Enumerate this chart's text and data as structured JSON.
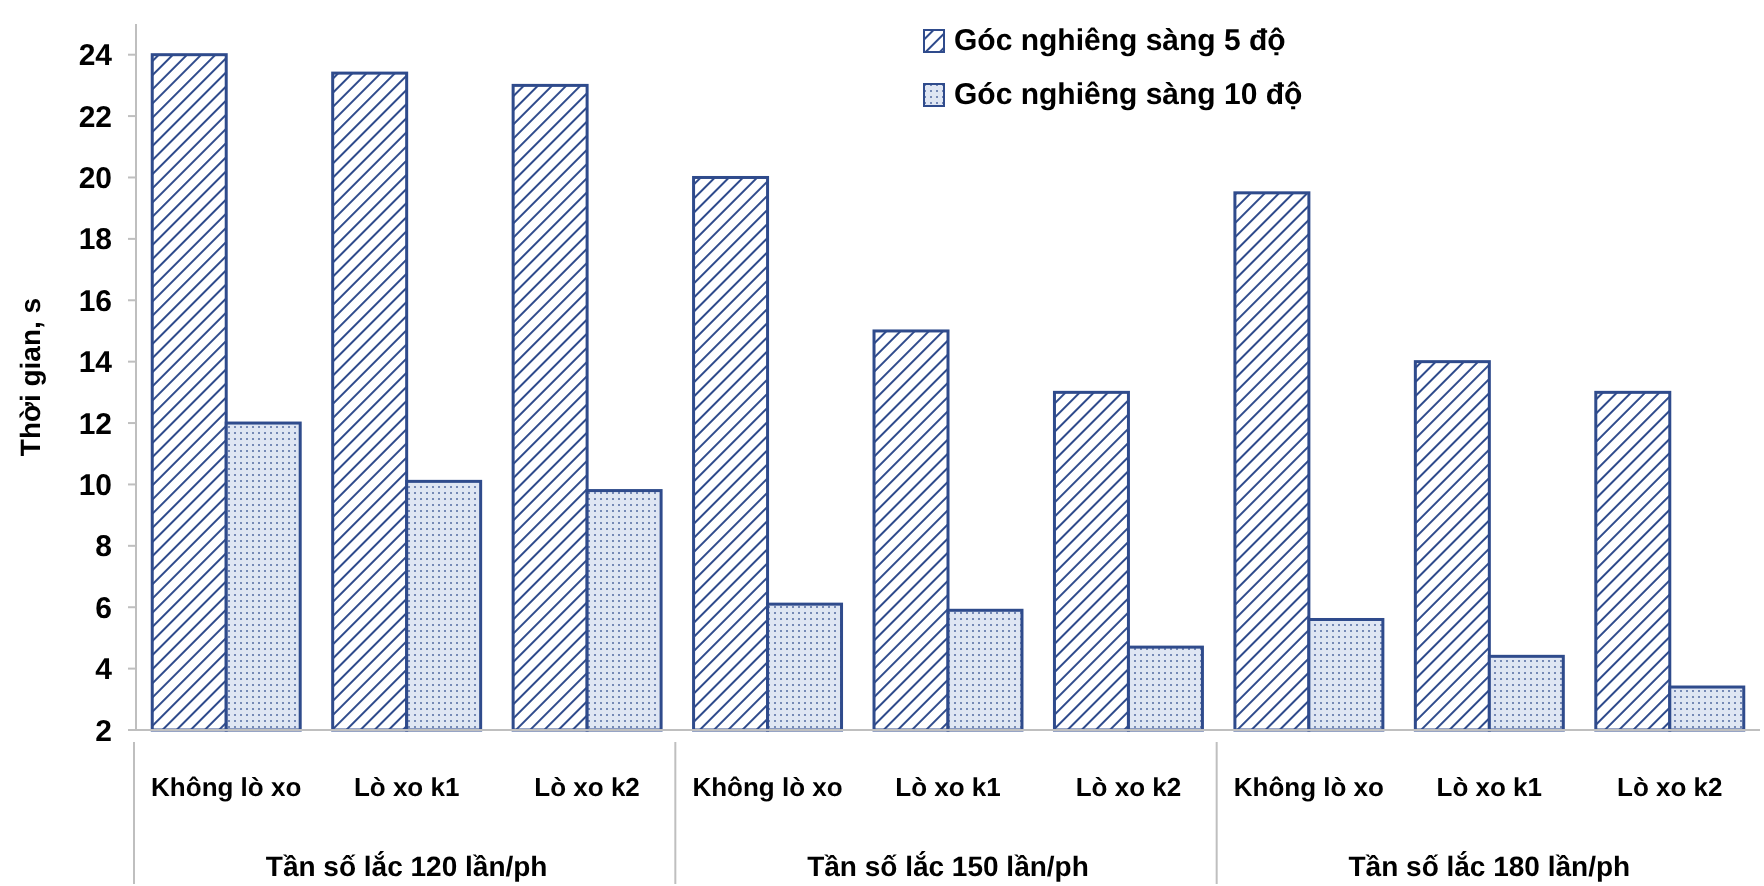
{
  "chart_data": {
    "type": "bar",
    "ylabel": "Thời gian, s",
    "categories": [
      "Không lò xo",
      "Lò xo k1",
      "Lò xo k2",
      "Không lò xo",
      "Lò xo k1",
      "Lò xo k2",
      "Không lò xo",
      "Lò xo k1",
      "Lò xo k2"
    ],
    "series": [
      {
        "name": "Góc nghiêng sàng 5 độ",
        "color": "#2f4b8c",
        "values": [
          24,
          23.4,
          23,
          20,
          15,
          13,
          19.5,
          14,
          13
        ]
      },
      {
        "name": "Góc nghiêng sàng 10 độ",
        "color": "#2f4b8c",
        "values": [
          12,
          10.1,
          9.8,
          6.1,
          5.9,
          4.7,
          5.6,
          4.4,
          3.4
        ]
      }
    ],
    "annotations": [
      "Tần số lắc 120 lần/ph",
      "Tần số lắc 150 lần/ph",
      "Tần số lắc 180 lần/ph"
    ],
    "ylim": [
      2,
      25
    ],
    "yticks": [
      2,
      4,
      6,
      8,
      10,
      12,
      14,
      16,
      18,
      20,
      22,
      24
    ],
    "grid": false,
    "legend": "top right"
  }
}
